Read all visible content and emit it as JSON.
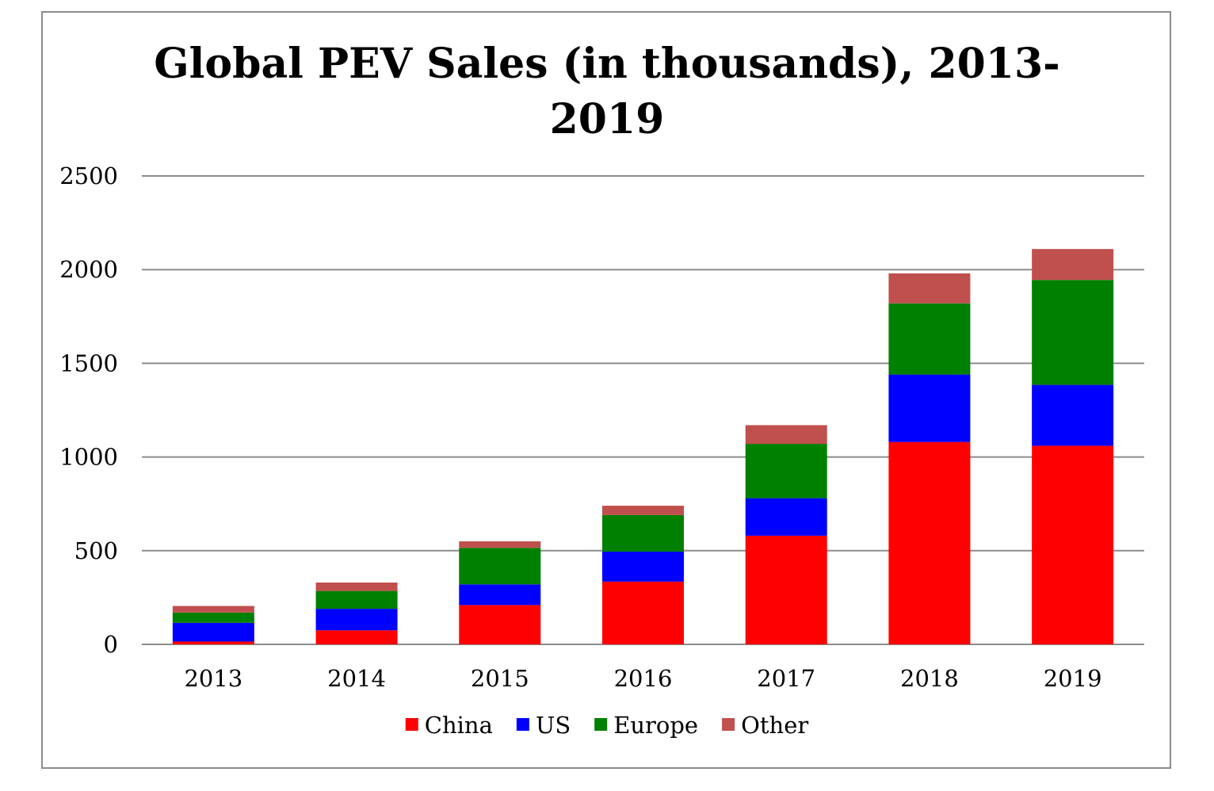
{
  "chart_data": {
    "type": "bar",
    "stacked": true,
    "title_lines": [
      "Global PEV Sales (in thousands), 2013-",
      "2019"
    ],
    "xlabel": "",
    "ylabel": "",
    "categories": [
      "2013",
      "2014",
      "2015",
      "2016",
      "2017",
      "2018",
      "2019"
    ],
    "ylim": [
      0,
      2500
    ],
    "yticks": [
      "0",
      "500",
      "1000",
      "1500",
      "2000",
      "2500"
    ],
    "grid": true,
    "legend_position": "bottom",
    "series": [
      {
        "name": "China",
        "color": "#ff0000",
        "values": [
          15,
          75,
          210,
          335,
          580,
          1080,
          1060
        ]
      },
      {
        "name": "US",
        "color": "#0000ff",
        "values": [
          100,
          115,
          110,
          160,
          200,
          360,
          325
        ]
      },
      {
        "name": "Europe",
        "color": "#008000",
        "values": [
          55,
          95,
          195,
          195,
          290,
          380,
          560
        ]
      },
      {
        "name": "Other",
        "color": "#c0504d",
        "values": [
          35,
          45,
          35,
          50,
          100,
          160,
          165
        ]
      }
    ]
  }
}
